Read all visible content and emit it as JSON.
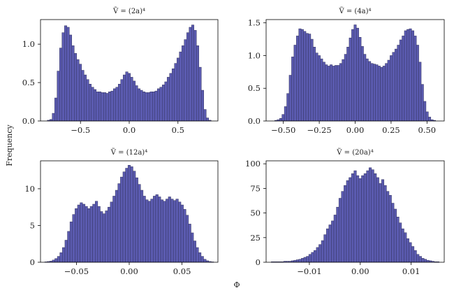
{
  "figure": {
    "shared_xlabel": "Φ",
    "shared_ylabel": "Frequency"
  },
  "chart_data": [
    {
      "type": "bar",
      "title": "Ṽ = (2a)⁴",
      "xlim": [
        -0.91,
        0.91
      ],
      "ylim": [
        0,
        1.32
      ],
      "xticks": [
        -0.5,
        0.0,
        0.5
      ],
      "xtick_labels": [
        "−0.5",
        "0.0",
        "0.5"
      ],
      "yticks": [
        0.0,
        0.5,
        1.0
      ],
      "ytick_labels": [
        "0.0",
        "0.5",
        "1.0"
      ],
      "bin_range": [
        -0.84,
        0.84
      ],
      "values": [
        0.01,
        0.02,
        0.1,
        0.3,
        0.65,
        0.95,
        1.15,
        1.24,
        1.22,
        1.12,
        0.98,
        0.88,
        0.8,
        0.74,
        0.66,
        0.6,
        0.54,
        0.48,
        0.44,
        0.41,
        0.38,
        0.38,
        0.37,
        0.37,
        0.36,
        0.38,
        0.39,
        0.42,
        0.44,
        0.48,
        0.54,
        0.6,
        0.64,
        0.62,
        0.57,
        0.52,
        0.46,
        0.42,
        0.4,
        0.38,
        0.37,
        0.37,
        0.38,
        0.38,
        0.39,
        0.42,
        0.44,
        0.47,
        0.51,
        0.57,
        0.62,
        0.68,
        0.75,
        0.82,
        0.9,
        0.98,
        1.06,
        1.15,
        1.22,
        1.25,
        1.18,
        0.98,
        0.7,
        0.4,
        0.15,
        0.04,
        0.01
      ]
    },
    {
      "type": "bar",
      "title": "Ṽ = (4a)⁴",
      "xlim": [
        -0.62,
        0.62
      ],
      "ylim": [
        0,
        1.55
      ],
      "xticks": [
        -0.5,
        -0.25,
        0.0,
        0.25,
        0.5
      ],
      "xtick_labels": [
        "−0.50",
        "−0.25",
        "0.00",
        "0.25",
        "0.50"
      ],
      "yticks": [
        0.0,
        0.5,
        1.0,
        1.5
      ],
      "ytick_labels": [
        "0.0",
        "0.5",
        "1.0",
        "1.5"
      ],
      "bin_range": [
        -0.56,
        0.56
      ],
      "values": [
        0.01,
        0.02,
        0.04,
        0.1,
        0.22,
        0.42,
        0.7,
        0.98,
        1.16,
        1.3,
        1.41,
        1.4,
        1.37,
        1.34,
        1.33,
        1.25,
        1.13,
        1.04,
        1.0,
        0.95,
        0.9,
        0.86,
        0.84,
        0.86,
        0.84,
        0.85,
        0.85,
        0.88,
        0.94,
        1.02,
        1.13,
        1.27,
        1.4,
        1.47,
        1.42,
        1.28,
        1.14,
        1.02,
        0.95,
        0.91,
        0.88,
        0.87,
        0.86,
        0.84,
        0.82,
        0.84,
        0.88,
        0.93,
        1.0,
        1.05,
        1.1,
        1.16,
        1.24,
        1.3,
        1.38,
        1.4,
        1.41,
        1.38,
        1.3,
        1.16,
        0.9,
        0.56,
        0.3,
        0.14,
        0.06,
        0.02,
        0.01
      ]
    },
    {
      "type": "bar",
      "title": "Ṽ = (12a)⁴",
      "xlim": [
        -0.084,
        0.084
      ],
      "ylim": [
        0,
        13.8
      ],
      "xticks": [
        -0.05,
        0.0,
        0.05
      ],
      "xtick_labels": [
        "−0.05",
        "0.00",
        "0.05"
      ],
      "yticks": [
        0,
        5,
        10
      ],
      "ytick_labels": [
        "0",
        "5",
        "10"
      ],
      "bin_range": [
        -0.08,
        0.08
      ],
      "values": [
        0.05,
        0.1,
        0.15,
        0.3,
        0.5,
        0.8,
        1.3,
        2.0,
        3.0,
        4.2,
        5.5,
        6.5,
        7.3,
        7.8,
        8.1,
        7.9,
        7.6,
        7.3,
        7.6,
        7.9,
        8.3,
        7.6,
        6.9,
        6.6,
        7.0,
        7.5,
        8.2,
        9.0,
        9.8,
        10.7,
        11.6,
        12.3,
        12.8,
        13.2,
        13.0,
        12.4,
        11.5,
        10.6,
        9.8,
        9.0,
        8.5,
        8.3,
        8.6,
        9.0,
        9.2,
        8.9,
        8.5,
        8.3,
        8.6,
        8.9,
        8.6,
        8.4,
        8.6,
        8.2,
        7.8,
        7.2,
        6.4,
        5.2,
        4.0,
        2.9,
        2.0,
        1.3,
        0.8,
        0.4,
        0.2,
        0.1,
        0.05
      ]
    },
    {
      "type": "bar",
      "title": "Ṽ = (20a)⁴",
      "xlim": [
        -0.0185,
        0.0165
      ],
      "ylim": [
        0,
        103
      ],
      "xticks": [
        -0.01,
        0.0,
        0.01
      ],
      "xtick_labels": [
        "−0.01",
        "0.00",
        "0.01"
      ],
      "yticks": [
        0,
        25,
        50,
        75,
        100
      ],
      "ytick_labels": [
        "0",
        "25",
        "50",
        "75",
        "100"
      ],
      "bin_range": [
        -0.0175,
        0.0155
      ],
      "values": [
        0.5,
        0.5,
        0.5,
        0.5,
        0.5,
        1,
        1,
        1,
        1.5,
        2,
        2.5,
        3,
        4,
        5,
        6,
        8,
        10,
        12,
        15,
        18,
        22,
        28,
        34,
        38,
        42,
        48,
        56,
        65,
        72,
        78,
        83,
        86,
        90,
        93,
        88,
        85,
        88,
        90,
        93,
        96,
        94,
        90,
        86,
        80,
        84,
        78,
        72,
        68,
        60,
        54,
        46,
        40,
        34,
        30,
        24,
        20,
        16,
        12,
        8,
        6,
        4,
        3,
        2,
        1.5,
        1,
        0.5,
        0.5
      ]
    }
  ]
}
